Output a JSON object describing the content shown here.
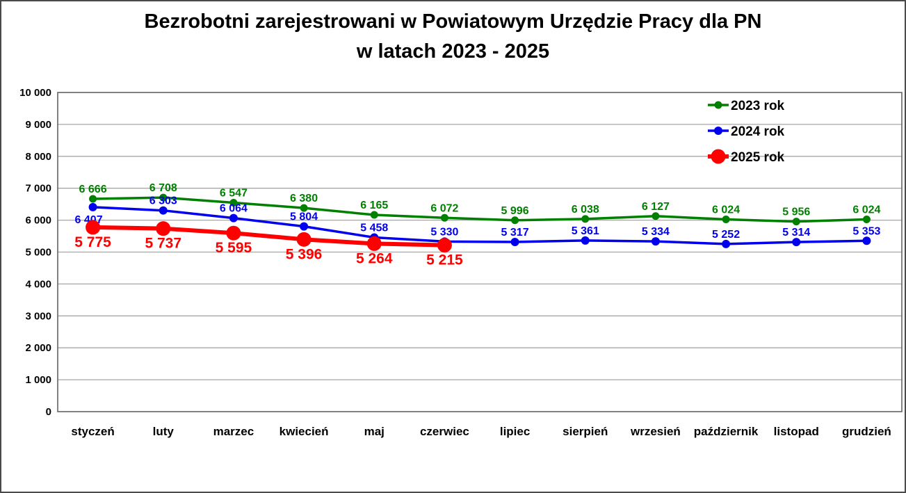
{
  "title": {
    "line1": "Bezrobotni zarejestrowani w Powiatowym Urzędzie Pracy dla PN",
    "line2": "w latach 2023 - 2025"
  },
  "colors": {
    "background": "#ffffff",
    "frame_border": "#595959",
    "gridline": "#a6a6a6",
    "axis_text": "#000000",
    "series_2023": "#008000",
    "series_2024": "#0000ee",
    "series_2025": "#ff0000"
  },
  "chart_data": {
    "type": "line",
    "title": "Bezrobotni zarejestrowani w Powiatowym Urzędzie Pracy dla PN w latach 2023 - 2025",
    "categories": [
      "styczeń",
      "luty",
      "marzec",
      "kwiecień",
      "maj",
      "czerwiec",
      "lipiec",
      "sierpień",
      "wrzesień",
      "październik",
      "listopad",
      "grudzień"
    ],
    "series": [
      {
        "name": "2023 rok",
        "color": "#008000",
        "values": [
          6666,
          6708,
          6547,
          6380,
          6165,
          6072,
          5996,
          6038,
          6127,
          6024,
          5956,
          6024
        ],
        "line_width": 3.5,
        "marker_radius": 5.5,
        "label_font_size": 16,
        "label_position": "above"
      },
      {
        "name": "2024 rok",
        "color": "#0000ee",
        "values": [
          6407,
          6303,
          6064,
          5804,
          5458,
          5330,
          5317,
          5361,
          5334,
          5252,
          5314,
          5353
        ],
        "line_width": 3.5,
        "marker_radius": 6,
        "label_font_size": 16,
        "label_position": "above",
        "label_position_overrides": {
          "0": "below"
        },
        "label_dx_overrides": {
          "0": -6
        }
      },
      {
        "name": "2025 rok",
        "color": "#ff0000",
        "values": [
          5775,
          5737,
          5595,
          5396,
          5264,
          5215
        ],
        "line_width": 6,
        "marker_radius": 10.5,
        "label_font_size": 21,
        "label_position": "below"
      }
    ],
    "ylim": [
      0,
      10000
    ],
    "ytick_step": 1000,
    "y_tick_labels": [
      "0",
      "1 000",
      "2 000",
      "3 000",
      "4 000",
      "5 000",
      "6 000",
      "7 000",
      "8 000",
      "9 000",
      "10 000"
    ],
    "xlabel": "",
    "ylabel": "",
    "grid": true,
    "legend_position": "top-right",
    "legend_entries": [
      "2023 rok",
      "2024 rok",
      "2025 rok"
    ]
  }
}
